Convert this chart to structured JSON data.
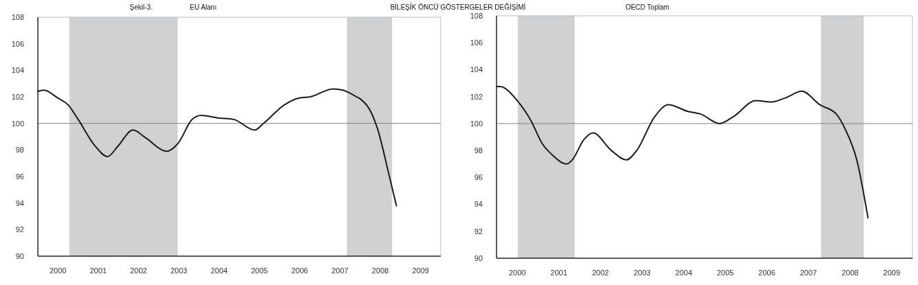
{
  "chart_data": [
    {
      "type": "line",
      "title": "EU Alanı",
      "annotations": [
        "Şekil-3.",
        "BİLEŞİK ÖNCÜ GÖSTERGELER DEĞİŞİMİ"
      ],
      "xlim": [
        2000,
        2010
      ],
      "xticks": [
        {
          "value": 2000.5,
          "label": "2000"
        },
        {
          "value": 2001.5,
          "label": "2001"
        },
        {
          "value": 2002.5,
          "label": "2002"
        },
        {
          "value": 2003.5,
          "label": "2003"
        },
        {
          "value": 2004.5,
          "label": "2004"
        },
        {
          "value": 2005.5,
          "label": "2005"
        },
        {
          "value": 2006.5,
          "label": "2006"
        },
        {
          "value": 2007.5,
          "label": "2007"
        },
        {
          "value": 2008.5,
          "label": "2008"
        },
        {
          "value": 2009.5,
          "label": "2009"
        }
      ],
      "ylim": [
        90,
        108
      ],
      "yticks": [
        90,
        92,
        94,
        96,
        98,
        100,
        102,
        104,
        106,
        108
      ],
      "ref_lines": [
        {
          "axis": "y",
          "value": 100,
          "color": "#808080"
        }
      ],
      "bands": [
        {
          "axis": "x",
          "from": 2000.78,
          "to": 2003.47,
          "color": "#d0d1d3"
        },
        {
          "axis": "x",
          "from": 2007.67,
          "to": 2008.79,
          "color": "#d0d1d3"
        }
      ],
      "series": [
        {
          "color": "#1a1a1a",
          "x": [
            2000,
            2000.15,
            2000.5,
            2000.75,
            2001,
            2001.42,
            2001.73,
            2001.99,
            2002.36,
            2002.68,
            2003.2,
            2003.48,
            2003.83,
            2004.05,
            2004.5,
            2004.86,
            2005.38,
            2005.6,
            2006.12,
            2006.47,
            2006.76,
            2007.33,
            2007.57,
            2007.91,
            2008.02,
            2008.26,
            2008.43,
            2008.71,
            2008.9
          ],
          "values": [
            102.4,
            102.5,
            101.9,
            101.4,
            100.3,
            98.3,
            97.5,
            98.3,
            99.5,
            98.9,
            97.9,
            98.5,
            100.3,
            100.6,
            100.4,
            100.3,
            99.5,
            100,
            101.4,
            101.9,
            102,
            102.6,
            102.5,
            102,
            101.8,
            100.9,
            99.6,
            96.2,
            93.8
          ]
        }
      ]
    },
    {
      "type": "line",
      "title": "OECD Toplam",
      "xlim": [
        2000,
        2010
      ],
      "xticks": [
        {
          "value": 2000.5,
          "label": "2000"
        },
        {
          "value": 2001.5,
          "label": "2001"
        },
        {
          "value": 2002.5,
          "label": "2002"
        },
        {
          "value": 2003.5,
          "label": "2003"
        },
        {
          "value": 2004.5,
          "label": "2004"
        },
        {
          "value": 2005.5,
          "label": "2005"
        },
        {
          "value": 2006.5,
          "label": "2006"
        },
        {
          "value": 2007.5,
          "label": "2007"
        },
        {
          "value": 2008.5,
          "label": "2008"
        },
        {
          "value": 2009.5,
          "label": "2009"
        }
      ],
      "ylim": [
        90,
        108
      ],
      "yticks": [
        90,
        92,
        94,
        96,
        98,
        100,
        102,
        104,
        106,
        108
      ],
      "ref_lines": [
        {
          "axis": "y",
          "value": 100,
          "color": "#808080"
        }
      ],
      "bands": [
        {
          "axis": "x",
          "from": 2000.51,
          "to": 2001.88,
          "color": "#d0d1d3"
        },
        {
          "axis": "x",
          "from": 2007.8,
          "to": 2008.83,
          "color": "#d0d1d3"
        }
      ],
      "series": [
        {
          "color": "#1a1a1a",
          "x": [
            2000,
            2000.08,
            2000.5,
            2000.83,
            2001.1,
            2001.33,
            2001.69,
            2001.82,
            2002.1,
            2002.32,
            2002.76,
            2003.12,
            2003.37,
            2003.8,
            2004.13,
            2004.6,
            2004.91,
            2005.36,
            2005.69,
            2006.23,
            2006.61,
            2006.94,
            2007.34,
            2007.77,
            2008.17,
            2008.38,
            2008.66,
            2008.93
          ],
          "values": [
            102.75,
            102.75,
            101.7,
            100.2,
            98.5,
            97.7,
            97,
            97.3,
            98.8,
            99.3,
            98,
            97.3,
            98,
            100.5,
            101.4,
            100.9,
            100.7,
            100,
            100.5,
            101.7,
            101.6,
            101.9,
            102.4,
            101.4,
            100.7,
            99.6,
            97.3,
            93
          ]
        }
      ]
    }
  ]
}
